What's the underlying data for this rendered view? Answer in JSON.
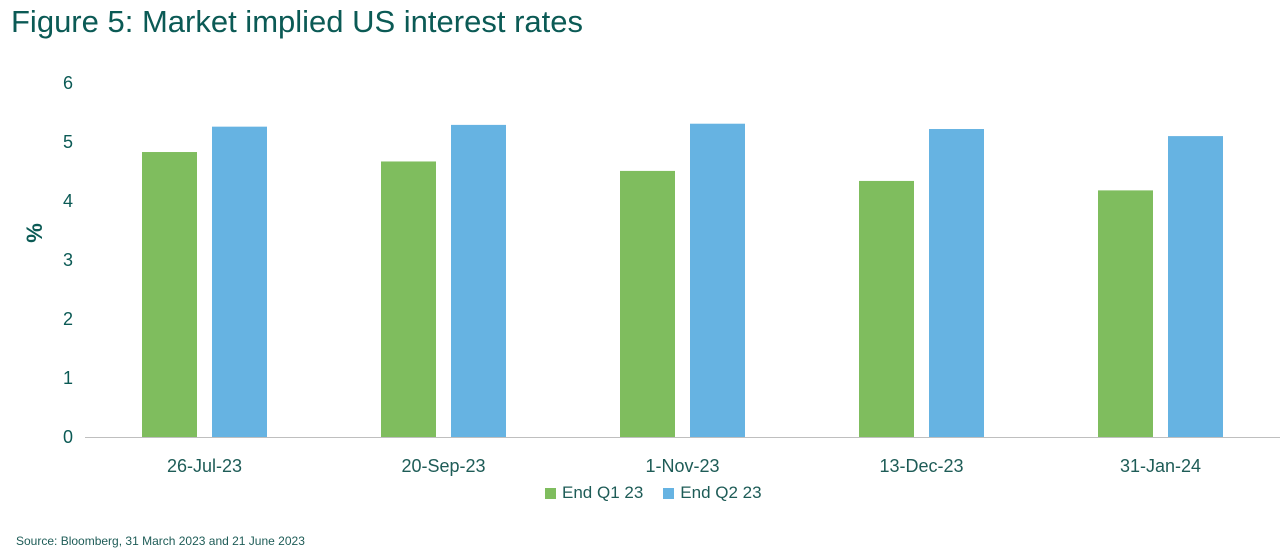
{
  "chart_data": {
    "type": "bar",
    "title": "Figure 5: Market implied US interest rates",
    "xlabel": "",
    "ylabel": "%",
    "ylim": [
      0,
      6
    ],
    "yticks": [
      "0",
      "1",
      "2",
      "3",
      "4",
      "5",
      "6"
    ],
    "categories": [
      "26-Jul-23",
      "20-Sep-23",
      "1-Nov-23",
      "13-Dec-23",
      "31-Jan-24"
    ],
    "series": [
      {
        "name": "End Q1 23",
        "color": "#7fbd5e",
        "values": [
          4.83,
          4.67,
          4.51,
          4.34,
          4.18
        ]
      },
      {
        "name": "End Q2 23",
        "color": "#66b3e2",
        "values": [
          5.26,
          5.29,
          5.31,
          5.22,
          5.1
        ]
      }
    ],
    "grid": false,
    "legend": "bottom-center"
  },
  "source": "Source: Bloomberg, 31 March 2023 and 21 June 2023",
  "colors": {
    "text": "#0b5a55",
    "axis": "#bfbfbf"
  }
}
